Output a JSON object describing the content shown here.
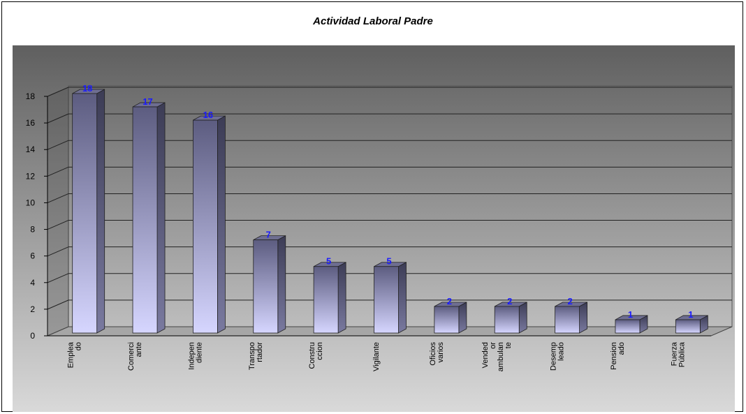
{
  "chart_data": {
    "type": "bar",
    "title": "Actividad Laboral Padre",
    "xlabel": "",
    "ylabel": "",
    "ylim": [
      0,
      18
    ],
    "yticks": [
      "0",
      "2",
      "4",
      "6",
      "8",
      "10",
      "12",
      "14",
      "16",
      "18"
    ],
    "categories": [
      [
        "Emplea",
        "do"
      ],
      [
        "Comerci",
        "ante"
      ],
      [
        "Indepen",
        "diente"
      ],
      [
        "Transpo",
        "rtador"
      ],
      [
        "Constru",
        "ccion"
      ],
      [
        "Vigilante"
      ],
      [
        "Oficios",
        "varios"
      ],
      [
        "Vended",
        "or",
        "ambulan",
        "te"
      ],
      [
        "Desemp",
        "leado"
      ],
      [
        "Pension",
        "ado"
      ],
      [
        "Fuerza",
        "Pública"
      ]
    ],
    "values": [
      18,
      17,
      16,
      7,
      5,
      5,
      2,
      2,
      2,
      1,
      1
    ],
    "data_labels": [
      "18",
      "17",
      "16",
      "7",
      "5",
      "5",
      "2",
      "2",
      "2",
      "1",
      "1"
    ],
    "grid": true,
    "legend": "none",
    "colors": {
      "bar_light": "#d6d6ff",
      "bar_dark": "#5c5c80",
      "bar_side": "#3c3c55",
      "bar_top": "#6e6e90",
      "label": "#1a1aff",
      "bg_top": "#5f5f5f",
      "bg_bottom": "#d9d9d9"
    }
  }
}
